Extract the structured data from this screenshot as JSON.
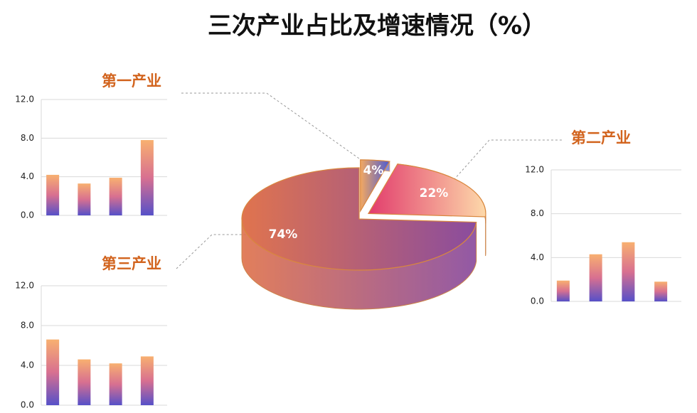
{
  "title": "三次产业占比及增速情况（%）",
  "chart_data": [
    {
      "type": "pie",
      "categories": [
        "第一产业",
        "第二产业",
        "第三产业"
      ],
      "values": [
        4,
        22,
        74
      ],
      "value_labels": [
        "4%",
        "22%",
        "74%"
      ],
      "colors": [
        [
          "#f2a862",
          "#4c5ad2"
        ],
        [
          "#e23c6c",
          "#fdd9aa"
        ],
        [
          "#e0744e",
          "#8a4c9e"
        ]
      ]
    },
    {
      "type": "bar",
      "categories": [
        null,
        null,
        null,
        null
      ],
      "values": [
        4.2,
        3.3,
        3.9,
        7.8
      ],
      "ylim": [
        0,
        12
      ],
      "yticks": [
        {
          "value": 0,
          "label": "0.0"
        },
        {
          "value": 4,
          "label": "4.0"
        },
        {
          "value": 8,
          "label": "8.0"
        },
        {
          "value": 12,
          "label": "12.0"
        }
      ],
      "grid": true,
      "colors": [
        "#f8b070",
        "#d87090",
        "#5650c8"
      ]
    },
    {
      "type": "bar",
      "categories": [
        null,
        null,
        null,
        null
      ],
      "values": [
        1.9,
        4.3,
        5.4,
        1.8
      ],
      "ylim": [
        0,
        12
      ],
      "yticks": [
        {
          "value": 0,
          "label": "0.0"
        },
        {
          "value": 4,
          "label": "4.0"
        },
        {
          "value": 8,
          "label": "8.0"
        },
        {
          "value": 12,
          "label": "12.0"
        }
      ],
      "grid": true,
      "colors": [
        "#f8b070",
        "#d87090",
        "#5650c8"
      ]
    },
    {
      "type": "bar",
      "categories": [
        null,
        null,
        null,
        null
      ],
      "values": [
        6.6,
        4.6,
        4.2,
        4.9
      ],
      "ylim": [
        0,
        12
      ],
      "yticks": [
        {
          "value": 0,
          "label": "0.0"
        },
        {
          "value": 4,
          "label": "4.0"
        },
        {
          "value": 8,
          "label": "8.0"
        },
        {
          "value": 12,
          "label": "12.0"
        }
      ],
      "grid": true,
      "colors": [
        "#f8b070",
        "#d87090",
        "#5650c8"
      ]
    }
  ]
}
